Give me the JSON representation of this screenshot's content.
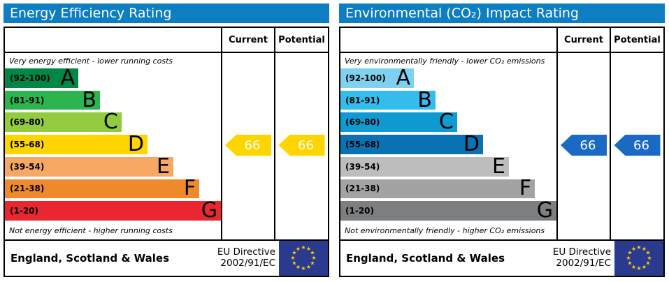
{
  "eu_flag": {
    "star": "★",
    "bg": "#2a3b8f",
    "star_color": "#ffcc00"
  },
  "panels": [
    {
      "title": "Energy Efficiency Rating",
      "header_bg": "#0e7ec2",
      "columns": {
        "current": "Current",
        "potential": "Potential"
      },
      "top_caption": "Very energy efficient - lower running costs",
      "bottom_caption": "Not energy efficient - higher running costs",
      "bands": [
        {
          "range": "(92-100)",
          "letter": "A",
          "color": "#008645",
          "width": "34%"
        },
        {
          "range": "(81-91)",
          "letter": "B",
          "color": "#2db44f",
          "width": "44%"
        },
        {
          "range": "(69-80)",
          "letter": "C",
          "color": "#92ca40",
          "width": "54%"
        },
        {
          "range": "(55-68)",
          "letter": "D",
          "color": "#ffd500",
          "width": "66%"
        },
        {
          "range": "(39-54)",
          "letter": "E",
          "color": "#f8a865",
          "width": "78%"
        },
        {
          "range": "(21-38)",
          "letter": "F",
          "color": "#ef8a2c",
          "width": "90%"
        },
        {
          "range": "(1-20)",
          "letter": "G",
          "color": "#e92730",
          "width": "100%"
        }
      ],
      "current": {
        "value": "66",
        "color": "#ffd500",
        "band_index": 3
      },
      "potential": {
        "value": "66",
        "color": "#ffd500",
        "band_index": 3
      },
      "footer": {
        "region": "England, Scotland & Wales",
        "directive_line1": "EU Directive",
        "directive_line2": "2002/91/EC"
      }
    },
    {
      "title": "Environmental (CO₂) Impact Rating",
      "header_bg": "#0e7ec2",
      "columns": {
        "current": "Current",
        "potential": "Potential"
      },
      "top_caption": "Very environmentally friendly - lower CO₂ emissions",
      "bottom_caption": "Not environmentally friendly - higher CO₂ emissions",
      "bands": [
        {
          "range": "(92-100)",
          "letter": "A",
          "color": "#7fd1f0",
          "width": "34%"
        },
        {
          "range": "(81-91)",
          "letter": "B",
          "color": "#35bcec",
          "width": "44%"
        },
        {
          "range": "(69-80)",
          "letter": "C",
          "color": "#0f9ad2",
          "width": "54%"
        },
        {
          "range": "(55-68)",
          "letter": "D",
          "color": "#0a72b2",
          "width": "66%"
        },
        {
          "range": "(39-54)",
          "letter": "E",
          "color": "#bdbdbd",
          "width": "78%"
        },
        {
          "range": "(21-38)",
          "letter": "F",
          "color": "#a3a3a3",
          "width": "90%"
        },
        {
          "range": "(1-20)",
          "letter": "G",
          "color": "#7c7e80",
          "width": "100%"
        }
      ],
      "current": {
        "value": "66",
        "color": "#1a6ac4",
        "band_index": 3
      },
      "potential": {
        "value": "66",
        "color": "#1a6ac4",
        "band_index": 3
      },
      "footer": {
        "region": "England, Scotland & Wales",
        "directive_line1": "EU Directive",
        "directive_line2": "2002/91/EC"
      }
    }
  ],
  "chart_data": [
    {
      "type": "bar",
      "title": "Energy Efficiency Rating",
      "categories": [
        "A (92-100)",
        "B (81-91)",
        "C (69-80)",
        "D (55-68)",
        "E (39-54)",
        "F (21-38)",
        "G (1-20)"
      ],
      "values": [
        34,
        44,
        54,
        66,
        78,
        90,
        100
      ],
      "values_note": "decorative band bar lengths, % of scale width",
      "current": 66,
      "potential": 66,
      "current_band": "D",
      "potential_band": "D",
      "legend": [
        "Current",
        "Potential"
      ],
      "annotations": [
        "Very energy efficient - lower running costs",
        "Not energy efficient - higher running costs",
        "England, Scotland & Wales",
        "EU Directive 2002/91/EC"
      ]
    },
    {
      "type": "bar",
      "title": "Environmental (CO₂) Impact Rating",
      "categories": [
        "A (92-100)",
        "B (81-91)",
        "C (69-80)",
        "D (55-68)",
        "E (39-54)",
        "F (21-38)",
        "G (1-20)"
      ],
      "values": [
        34,
        44,
        54,
        66,
        78,
        90,
        100
      ],
      "values_note": "decorative band bar lengths, % of scale width",
      "current": 66,
      "potential": 66,
      "current_band": "D",
      "potential_band": "D",
      "legend": [
        "Current",
        "Potential"
      ],
      "annotations": [
        "Very environmentally friendly - lower CO₂ emissions",
        "Not environmentally friendly - higher CO₂ emissions",
        "England, Scotland & Wales",
        "EU Directive 2002/91/EC"
      ]
    }
  ]
}
